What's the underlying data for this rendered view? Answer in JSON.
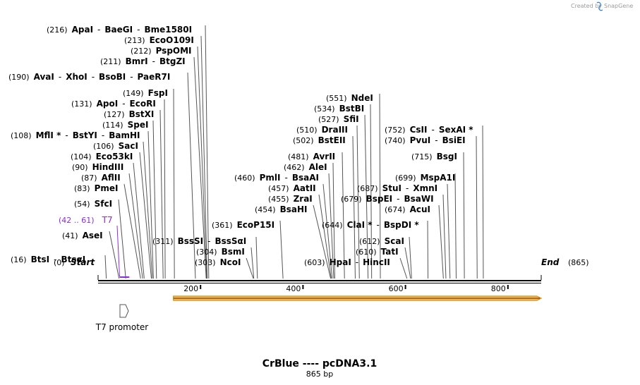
{
  "credit": {
    "prefix": "Created by",
    "brand": "SnapGene"
  },
  "title": "CrBlue ---- pcDNA3.1",
  "subtitle": "865 bp",
  "sequence": {
    "length": 865,
    "start_label": "Start",
    "end_label": "End",
    "start_pos": "(0)",
    "end_pos": "(865)"
  },
  "ruler_ticks": [
    200,
    400,
    600,
    800
  ],
  "colors": {
    "primer": "#8b2be2",
    "orf_fill": "#f5c26b",
    "orf_stroke": "#e08a00",
    "leader": "#555555",
    "backbone": "#000000"
  },
  "primer": {
    "name": "T7",
    "range": "(42 .. 61)",
    "start": 42,
    "end": 61
  },
  "feature": {
    "name": "T7 promoter",
    "pos": 42,
    "direction": "forward"
  },
  "orf": {
    "start": 147,
    "end": 865,
    "direction": "forward"
  },
  "sites": [
    {
      "pos": 16,
      "pos_label": "(16)",
      "names": [
        "BtsI",
        "BtsαI"
      ]
    },
    {
      "pos": 41,
      "pos_label": "(41)",
      "names": [
        "AseI"
      ]
    },
    {
      "pos": 54,
      "pos_label": "(54)",
      "names": [
        "SfcI"
      ]
    },
    {
      "pos": 83,
      "pos_label": "(83)",
      "names": [
        "PmeI"
      ]
    },
    {
      "pos": 87,
      "pos_label": "(87)",
      "names": [
        "AflII"
      ]
    },
    {
      "pos": 90,
      "pos_label": "(90)",
      "names": [
        "HindIII"
      ]
    },
    {
      "pos": 104,
      "pos_label": "(104)",
      "names": [
        "Eco53kI"
      ]
    },
    {
      "pos": 106,
      "pos_label": "(106)",
      "names": [
        "SacI"
      ]
    },
    {
      "pos": 108,
      "pos_label": "(108)",
      "names": [
        "MflI *",
        "BstYI",
        "BamHI"
      ]
    },
    {
      "pos": 114,
      "pos_label": "(114)",
      "names": [
        "SpeI"
      ]
    },
    {
      "pos": 127,
      "pos_label": "(127)",
      "names": [
        "BstXI"
      ]
    },
    {
      "pos": 131,
      "pos_label": "(131)",
      "names": [
        "ApoI",
        "EcoRI"
      ]
    },
    {
      "pos": 149,
      "pos_label": "(149)",
      "names": [
        "FspI"
      ]
    },
    {
      "pos": 190,
      "pos_label": "(190)",
      "names": [
        "AvaI",
        "XhoI",
        "BsoBI",
        "PaeR7I"
      ]
    },
    {
      "pos": 211,
      "pos_label": "(211)",
      "names": [
        "BmrI",
        "BtgZI"
      ]
    },
    {
      "pos": 212,
      "pos_label": "(212)",
      "names": [
        "PspOMI"
      ]
    },
    {
      "pos": 213,
      "pos_label": "(213)",
      "names": [
        "EcoO109I"
      ]
    },
    {
      "pos": 216,
      "pos_label": "(216)",
      "names": [
        "ApaI",
        "BaeGI",
        "Bme1580I"
      ]
    },
    {
      "pos": 303,
      "pos_label": "(303)",
      "names": [
        "NcoI"
      ]
    },
    {
      "pos": 304,
      "pos_label": "(304)",
      "names": [
        "BsmI"
      ]
    },
    {
      "pos": 311,
      "pos_label": "(311)",
      "names": [
        "BssSI",
        "BssSαI"
      ]
    },
    {
      "pos": 361,
      "pos_label": "(361)",
      "names": [
        "EcoP15I"
      ]
    },
    {
      "pos": 454,
      "pos_label": "(454)",
      "names": [
        "BsaHI"
      ]
    },
    {
      "pos": 455,
      "pos_label": "(455)",
      "names": [
        "ZraI"
      ]
    },
    {
      "pos": 457,
      "pos_label": "(457)",
      "names": [
        "AatII"
      ]
    },
    {
      "pos": 460,
      "pos_label": "(460)",
      "names": [
        "PmlI",
        "BsaAI"
      ]
    },
    {
      "pos": 462,
      "pos_label": "(462)",
      "names": [
        "AleI"
      ]
    },
    {
      "pos": 481,
      "pos_label": "(481)",
      "names": [
        "AvrII"
      ]
    },
    {
      "pos": 502,
      "pos_label": "(502)",
      "names": [
        "BstEII"
      ]
    },
    {
      "pos": 510,
      "pos_label": "(510)",
      "names": [
        "DraIII"
      ]
    },
    {
      "pos": 527,
      "pos_label": "(527)",
      "names": [
        "SfiI"
      ]
    },
    {
      "pos": 534,
      "pos_label": "(534)",
      "names": [
        "BstBI"
      ]
    },
    {
      "pos": 551,
      "pos_label": "(551)",
      "names": [
        "NdeI"
      ]
    },
    {
      "pos": 603,
      "pos_label": "(603)",
      "names": [
        "HpaI",
        "HincII"
      ]
    },
    {
      "pos": 610,
      "pos_label": "(610)",
      "names": [
        "TatI"
      ]
    },
    {
      "pos": 612,
      "pos_label": "(612)",
      "names": [
        "ScaI"
      ]
    },
    {
      "pos": 644,
      "pos_label": "(644)",
      "names": [
        "ClaI *",
        "BspDI *"
      ]
    },
    {
      "pos": 674,
      "pos_label": "(674)",
      "names": [
        "AcuI"
      ]
    },
    {
      "pos": 679,
      "pos_label": "(679)",
      "names": [
        "BspEI",
        "BsaWI"
      ]
    },
    {
      "pos": 687,
      "pos_label": "(687)",
      "names": [
        "StuI",
        "XmnI"
      ]
    },
    {
      "pos": 699,
      "pos_label": "(699)",
      "names": [
        "MspA1I"
      ]
    },
    {
      "pos": 715,
      "pos_label": "(715)",
      "names": [
        "BsgI"
      ]
    },
    {
      "pos": 740,
      "pos_label": "(740)",
      "names": [
        "PvuI",
        "BsiEI"
      ]
    },
    {
      "pos": 752,
      "pos_label": "(752)",
      "names": [
        "CsII",
        "SexAI *"
      ]
    }
  ]
}
